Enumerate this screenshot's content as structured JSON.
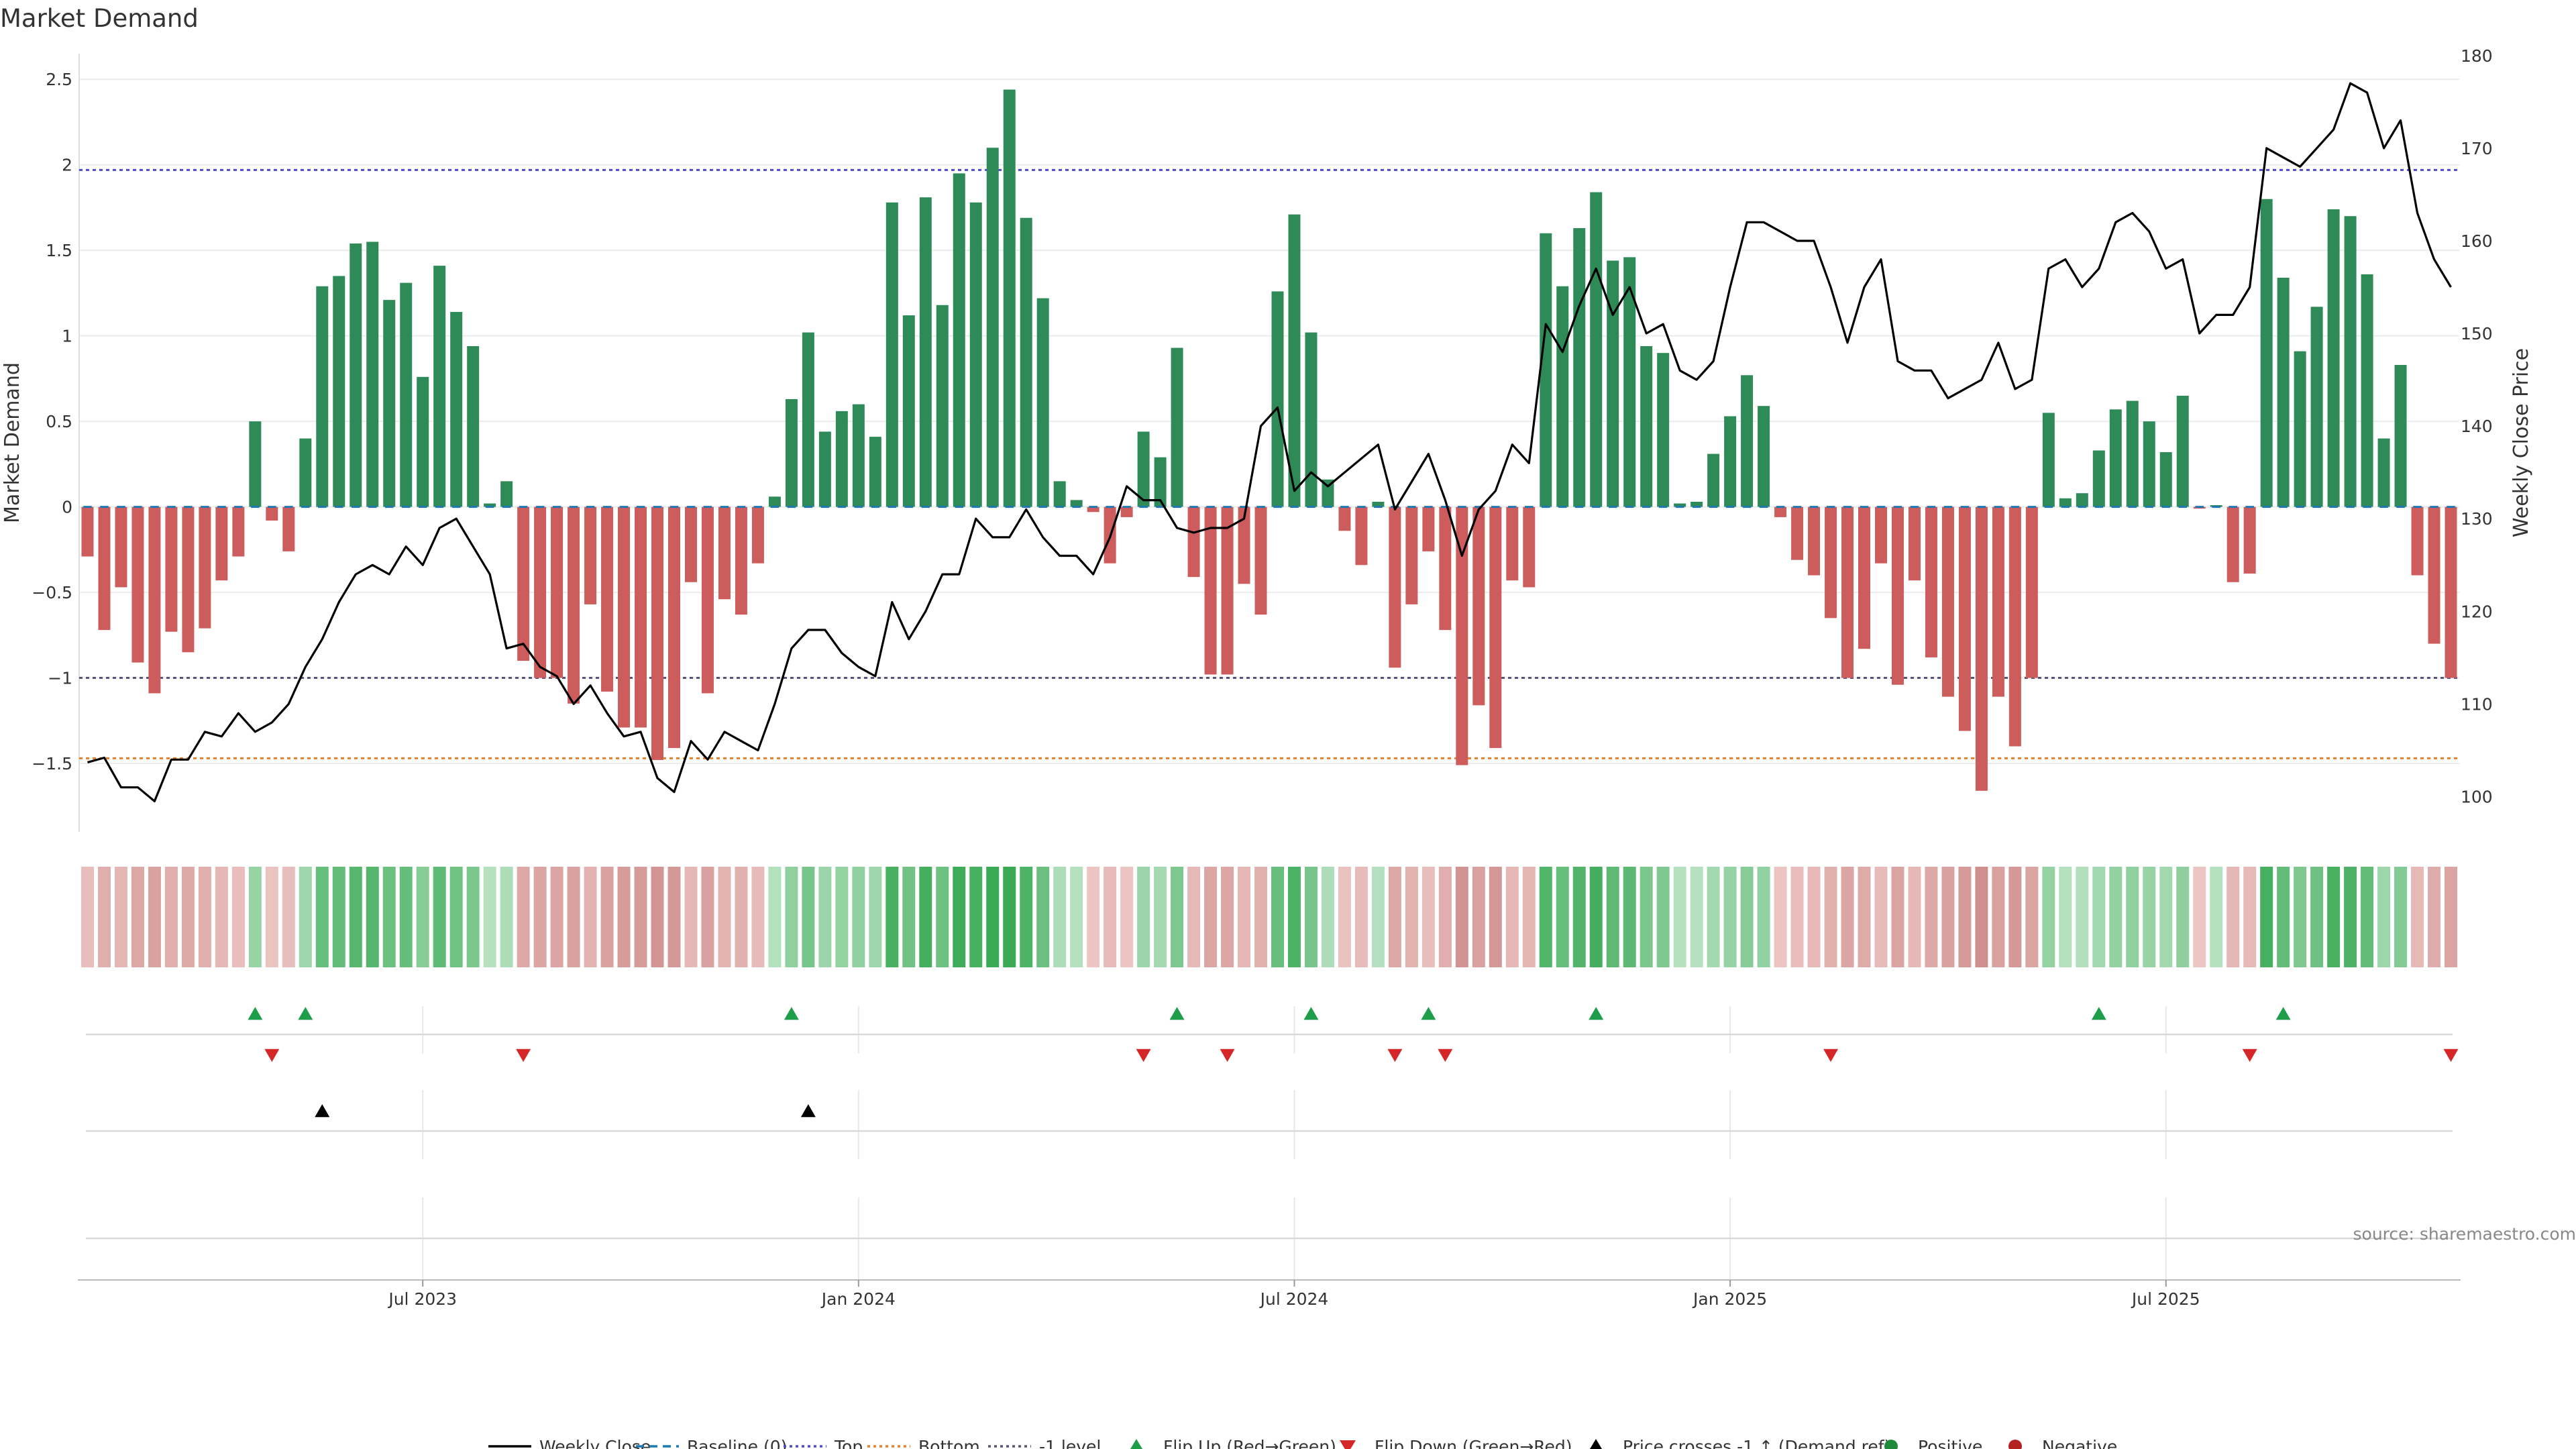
{
  "chart_data": {
    "type": "bar",
    "title": "Market Demand",
    "ylabel": "Market Demand",
    "y2label": "Weekly Close Price",
    "source": "source: sharemaestro.com",
    "ylim": [
      -1.9,
      2.65
    ],
    "y2lim": [
      96.2,
      180.2
    ],
    "yticks": [
      2.5,
      2,
      1.5,
      1,
      0.5,
      0,
      -0.5,
      -1,
      -1.5
    ],
    "yticklabels": [
      "2.5",
      "2",
      "1.5",
      "1",
      "0.5",
      "0",
      "−0.5",
      "−1",
      "−1.5"
    ],
    "y2ticks": [
      180,
      170,
      160,
      150,
      140,
      130,
      120,
      110,
      100
    ],
    "y2ticklabels": [
      "180",
      "170",
      "160",
      "150",
      "140",
      "130",
      "120",
      "110",
      "100"
    ],
    "xticks": [
      {
        "label": "Jul 2023",
        "index": 20.5
      },
      {
        "label": "Jan 2024",
        "index": 46.5
      },
      {
        "label": "Jul 2024",
        "index": 72.5
      },
      {
        "label": "Jan 2025",
        "index": 98.5
      },
      {
        "label": "Jul 2025",
        "index": 124.5
      }
    ],
    "reference_lines": {
      "top": 1.97,
      "minus_one": -1.0,
      "bottom": -1.47,
      "baseline": 0
    },
    "demand": [
      -0.29,
      -0.72,
      -0.47,
      -0.91,
      -1.09,
      -0.73,
      -0.85,
      -0.71,
      -0.43,
      -0.29,
      0.5,
      -0.08,
      -0.26,
      0.4,
      1.29,
      1.35,
      1.54,
      1.55,
      1.21,
      1.31,
      0.76,
      1.41,
      1.14,
      0.94,
      0.02,
      0.15,
      -0.9,
      -1.0,
      -1.0,
      -1.15,
      -0.57,
      -1.08,
      -1.29,
      -1.29,
      -1.48,
      -1.41,
      -0.44,
      -1.09,
      -0.54,
      -0.63,
      -0.33,
      0.06,
      0.63,
      1.02,
      0.44,
      0.56,
      0.6,
      0.41,
      1.78,
      1.12,
      1.81,
      1.18,
      1.95,
      1.78,
      2.1,
      2.44,
      1.69,
      1.22,
      0.15,
      0.04,
      -0.03,
      -0.33,
      -0.06,
      0.44,
      0.29,
      0.93,
      -0.41,
      -0.98,
      -0.98,
      -0.45,
      -0.63,
      1.26,
      1.71,
      1.02,
      0.16,
      -0.14,
      -0.34,
      0.03,
      -0.94,
      -0.57,
      -0.26,
      -0.72,
      -1.51,
      -1.16,
      -1.41,
      -0.43,
      -0.47,
      1.6,
      1.29,
      1.63,
      1.84,
      1.44,
      1.46,
      0.94,
      0.9,
      0.02,
      0.03,
      0.31,
      0.53,
      0.77,
      0.59,
      -0.06,
      -0.31,
      -0.4,
      -0.65,
      -1.0,
      -0.83,
      -0.33,
      -1.04,
      -0.43,
      -0.88,
      -1.11,
      -1.31,
      -1.66,
      -1.11,
      -1.4,
      -1.0,
      0.55,
      0.05,
      0.08,
      0.33,
      0.57,
      0.62,
      0.5,
      0.32,
      0.65,
      -0.01,
      0.01,
      -0.44,
      -0.39,
      1.8,
      1.34,
      0.91,
      1.17,
      1.74,
      1.7,
      1.36,
      0.4,
      0.83,
      -0.4,
      -0.8,
      -1.0
    ],
    "price": [
      103.7,
      104.2,
      101.0,
      101.0,
      99.5,
      104.0,
      104.0,
      107.0,
      106.5,
      109.0,
      107.0,
      108.0,
      110.0,
      114.0,
      117.0,
      121.0,
      124.0,
      125.0,
      124.0,
      127.0,
      125.0,
      129.0,
      130.0,
      127.0,
      124.0,
      116.0,
      116.5,
      114.0,
      113.0,
      110.0,
      112.0,
      109.0,
      106.5,
      107.0,
      102.0,
      100.5,
      106.0,
      104.0,
      107.0,
      106.0,
      105.0,
      110.0,
      116.0,
      118.0,
      118.0,
      115.5,
      114.0,
      113.0,
      121.0,
      117.0,
      120.0,
      124.0,
      124.0,
      130.0,
      128.0,
      128.0,
      131.0,
      128.0,
      126.0,
      126.0,
      124.0,
      128.0,
      133.5,
      132.0,
      132.0,
      129.0,
      128.5,
      129.0,
      129.0,
      130.0,
      140.0,
      142.0,
      133.0,
      135.0,
      133.5,
      135.0,
      136.5,
      138.0,
      131.0,
      134.0,
      137.0,
      132.0,
      126.0,
      131.0,
      133.0,
      138.0,
      136.0,
      151.0,
      148.0,
      153.0,
      157.0,
      152.0,
      155.0,
      150.0,
      151.0,
      146.0,
      145.0,
      147.0,
      155.0,
      162.0,
      162.0,
      161.0,
      160.0,
      160.0,
      155.0,
      149.0,
      155.0,
      158.0,
      147.0,
      146.0,
      146.0,
      143.0,
      144.0,
      145.0,
      149.0,
      144.0,
      145.0,
      157.0,
      158.0,
      155.0,
      157.0,
      162.0,
      163.0,
      161.0,
      157.0,
      158.0,
      150.0,
      152.0,
      152.0,
      155.0,
      170.0,
      169.0,
      168.0,
      170.0,
      172.0,
      177.0,
      176.0,
      170.0,
      173.0,
      163.0,
      158.0,
      155.0
    ],
    "flip_up_indices": [
      10,
      13,
      42,
      65,
      73,
      80,
      90,
      120,
      131
    ],
    "flip_down_indices": [
      11,
      26,
      63,
      68,
      78,
      81,
      104,
      129,
      141
    ],
    "price_cross_indices": [
      14,
      43
    ],
    "legend": [
      {
        "label": "Weekly Close",
        "kind": "line",
        "color": "#000000"
      },
      {
        "label": "Baseline (0)",
        "kind": "dash",
        "color": "#1f77b4"
      },
      {
        "label": "Top",
        "kind": "dot",
        "color": "#4b4bcc"
      },
      {
        "label": "Bottom",
        "kind": "dot",
        "color": "#e8812a"
      },
      {
        "label": "-1 level",
        "kind": "dot",
        "color": "#555577"
      },
      {
        "label": "Flip Up (Red→Green)",
        "kind": "tri-up",
        "color": "#1e9e4a"
      },
      {
        "label": "Flip Down (Green→Red)",
        "kind": "tri-down",
        "color": "#d62728"
      },
      {
        "label": "Price crosses -1 ↑ (Demand ref)",
        "kind": "tri-up",
        "color": "#000000"
      },
      {
        "label": "Positive",
        "kind": "circle",
        "color": "#1e8a3a"
      },
      {
        "label": "Negative",
        "kind": "circle",
        "color": "#b22222"
      }
    ],
    "colors": {
      "positive": "#2e8b57",
      "negative": "#cd5c5c",
      "price": "#000000"
    }
  }
}
